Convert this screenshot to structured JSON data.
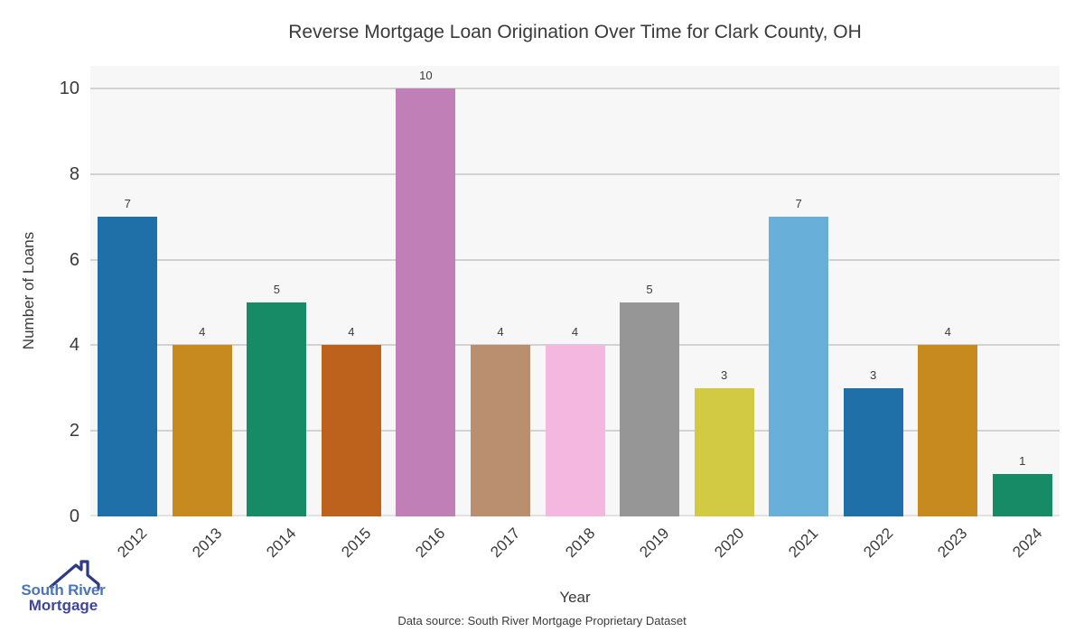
{
  "title": "Reverse Mortgage Loan Origination Over Time for Clark County, OH",
  "chart_data": {
    "type": "bar",
    "categories": [
      "2012",
      "2013",
      "2014",
      "2015",
      "2016",
      "2017",
      "2018",
      "2019",
      "2020",
      "2021",
      "2022",
      "2023",
      "2024"
    ],
    "values": [
      7,
      4,
      5,
      4,
      10,
      4,
      4,
      5,
      3,
      7,
      3,
      4,
      1
    ],
    "bar_colors": [
      "#1f6fa8",
      "#c78a1f",
      "#178a66",
      "#bd621c",
      "#c17fb8",
      "#b98f70",
      "#f4b8e0",
      "#969696",
      "#d3ca44",
      "#68afd9",
      "#1f6fa8",
      "#c78a1f",
      "#178a66"
    ],
    "title": "Reverse Mortgage Loan Origination Over Time for Clark County, OH",
    "xlabel": "Year",
    "ylabel": "Number of Loans",
    "yticks": [
      0,
      2,
      4,
      6,
      8,
      10
    ],
    "ylim": [
      0,
      10.53
    ],
    "grid": "horizontal",
    "legend": "none",
    "plot_background": "#f7f7f7",
    "grid_color": "#d2d2d2",
    "text_color": "#3a3a3a"
  },
  "footer": {
    "source_text": "Data source: South River Mortgage Proprietary Dataset"
  },
  "logo": {
    "line1": "South River",
    "line2": "Mortgage",
    "line1_color": "#4a74bc",
    "line2_color": "#3f44a0",
    "roof_color": "#2e3a87"
  }
}
